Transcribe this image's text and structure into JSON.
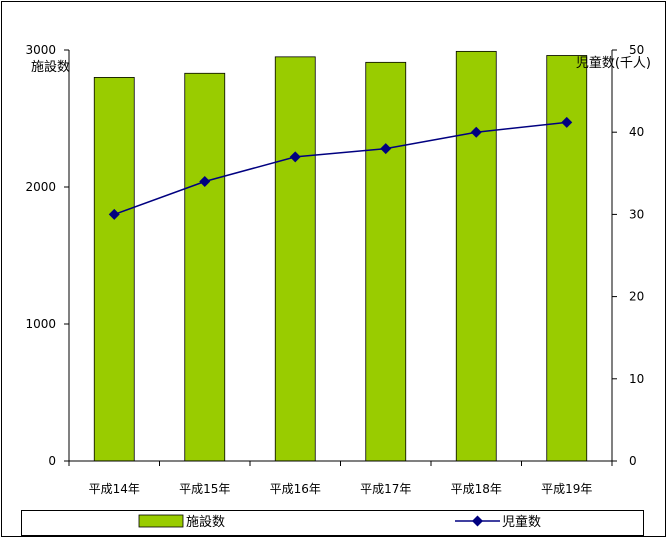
{
  "chart_data": {
    "type": "bar",
    "categories": [
      "平成14年",
      "平成15年",
      "平成16年",
      "平成17年",
      "平成18年",
      "平成19年"
    ],
    "series": [
      {
        "name": "施設数",
        "type": "bar",
        "axis": "left",
        "color": "#99cc00",
        "values": [
          2800,
          2830,
          2950,
          2910,
          2990,
          2960
        ]
      },
      {
        "name": "児童数",
        "type": "line",
        "axis": "right",
        "color": "#000080",
        "values": [
          30,
          34,
          37,
          38,
          40,
          41.2
        ]
      }
    ],
    "y_left": {
      "label": "施設数",
      "ylim": [
        0,
        3000
      ],
      "ticks": [
        0,
        1000,
        2000,
        3000
      ]
    },
    "y_right": {
      "label": "児童数(千人)",
      "ylim": [
        0,
        50
      ],
      "ticks": [
        0,
        10,
        20,
        30,
        40,
        50
      ]
    },
    "legend": {
      "placement": "bottom",
      "items": [
        {
          "label": "施設数",
          "marker": "bar"
        },
        {
          "label": "児童数",
          "marker": "line-diamond"
        }
      ]
    },
    "grid": false
  }
}
